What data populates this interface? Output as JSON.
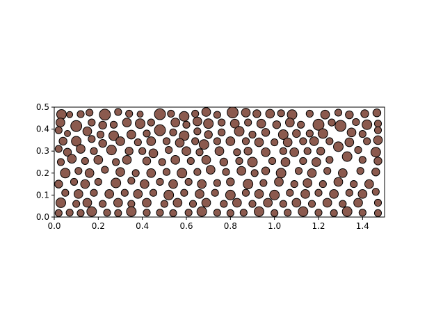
{
  "chart_data": {
    "type": "scatter",
    "title": "",
    "xlabel": "",
    "ylabel": "",
    "xlim": [
      0.0,
      1.5
    ],
    "ylim": [
      0.0,
      0.5
    ],
    "xticks": [
      "0.0",
      "0.2",
      "0.4",
      "0.6",
      "0.8",
      "1.0",
      "1.2",
      "1.4"
    ],
    "yticks": [
      "0.0",
      "0.1",
      "0.2",
      "0.3",
      "0.4",
      "0.5"
    ],
    "grid": false,
    "marker_fill": "#8b5a4e",
    "marker_edge": "#000000",
    "marker_shape": "circle",
    "aspect": "equal",
    "note_sizes": "marker radius r in data units",
    "points": [
      {
        "x": 0.033,
        "y": 0.467,
        "r": 0.022
      },
      {
        "x": 0.07,
        "y": 0.466,
        "r": 0.014
      },
      {
        "x": 0.12,
        "y": 0.468,
        "r": 0.016
      },
      {
        "x": 0.16,
        "y": 0.475,
        "r": 0.016
      },
      {
        "x": 0.23,
        "y": 0.466,
        "r": 0.025
      },
      {
        "x": 0.29,
        "y": 0.478,
        "r": 0.016
      },
      {
        "x": 0.34,
        "y": 0.47,
        "r": 0.016
      },
      {
        "x": 0.39,
        "y": 0.468,
        "r": 0.014
      },
      {
        "x": 0.48,
        "y": 0.468,
        "r": 0.025
      },
      {
        "x": 0.53,
        "y": 0.47,
        "r": 0.016
      },
      {
        "x": 0.59,
        "y": 0.458,
        "r": 0.022
      },
      {
        "x": 0.64,
        "y": 0.47,
        "r": 0.016
      },
      {
        "x": 0.69,
        "y": 0.478,
        "r": 0.02
      },
      {
        "x": 0.74,
        "y": 0.465,
        "r": 0.016
      },
      {
        "x": 0.81,
        "y": 0.476,
        "r": 0.025
      },
      {
        "x": 0.87,
        "y": 0.475,
        "r": 0.02
      },
      {
        "x": 0.92,
        "y": 0.47,
        "r": 0.018
      },
      {
        "x": 0.98,
        "y": 0.47,
        "r": 0.02
      },
      {
        "x": 1.03,
        "y": 0.472,
        "r": 0.016
      },
      {
        "x": 1.08,
        "y": 0.466,
        "r": 0.022
      },
      {
        "x": 1.16,
        "y": 0.47,
        "r": 0.016
      },
      {
        "x": 1.23,
        "y": 0.466,
        "r": 0.02
      },
      {
        "x": 1.29,
        "y": 0.475,
        "r": 0.016
      },
      {
        "x": 1.34,
        "y": 0.465,
        "r": 0.018
      },
      {
        "x": 1.41,
        "y": 0.47,
        "r": 0.018
      },
      {
        "x": 1.465,
        "y": 0.474,
        "r": 0.018
      },
      {
        "x": 0.028,
        "y": 0.43,
        "r": 0.02
      },
      {
        "x": 0.1,
        "y": 0.414,
        "r": 0.025
      },
      {
        "x": 0.17,
        "y": 0.43,
        "r": 0.016
      },
      {
        "x": 0.22,
        "y": 0.418,
        "r": 0.018
      },
      {
        "x": 0.27,
        "y": 0.42,
        "r": 0.016
      },
      {
        "x": 0.33,
        "y": 0.43,
        "r": 0.02
      },
      {
        "x": 0.39,
        "y": 0.425,
        "r": 0.022
      },
      {
        "x": 0.44,
        "y": 0.43,
        "r": 0.016
      },
      {
        "x": 0.48,
        "y": 0.395,
        "r": 0.025
      },
      {
        "x": 0.55,
        "y": 0.43,
        "r": 0.02
      },
      {
        "x": 0.6,
        "y": 0.42,
        "r": 0.016
      },
      {
        "x": 0.65,
        "y": 0.435,
        "r": 0.02
      },
      {
        "x": 0.7,
        "y": 0.425,
        "r": 0.022
      },
      {
        "x": 0.76,
        "y": 0.43,
        "r": 0.016
      },
      {
        "x": 0.82,
        "y": 0.425,
        "r": 0.02
      },
      {
        "x": 0.88,
        "y": 0.43,
        "r": 0.016
      },
      {
        "x": 0.94,
        "y": 0.425,
        "r": 0.02
      },
      {
        "x": 1.01,
        "y": 0.42,
        "r": 0.018
      },
      {
        "x": 1.07,
        "y": 0.43,
        "r": 0.02
      },
      {
        "x": 1.12,
        "y": 0.42,
        "r": 0.016
      },
      {
        "x": 1.2,
        "y": 0.42,
        "r": 0.025
      },
      {
        "x": 1.26,
        "y": 0.43,
        "r": 0.016
      },
      {
        "x": 1.3,
        "y": 0.415,
        "r": 0.025
      },
      {
        "x": 1.37,
        "y": 0.432,
        "r": 0.016
      },
      {
        "x": 1.42,
        "y": 0.42,
        "r": 0.022
      },
      {
        "x": 1.47,
        "y": 0.425,
        "r": 0.016
      },
      {
        "x": 0.02,
        "y": 0.395,
        "r": 0.016
      },
      {
        "x": 0.06,
        "y": 0.38,
        "r": 0.014
      },
      {
        "x": 0.15,
        "y": 0.39,
        "r": 0.02
      },
      {
        "x": 0.21,
        "y": 0.375,
        "r": 0.016
      },
      {
        "x": 0.27,
        "y": 0.37,
        "r": 0.022
      },
      {
        "x": 0.35,
        "y": 0.375,
        "r": 0.02
      },
      {
        "x": 0.42,
        "y": 0.38,
        "r": 0.016
      },
      {
        "x": 0.54,
        "y": 0.385,
        "r": 0.016
      },
      {
        "x": 0.59,
        "y": 0.37,
        "r": 0.022
      },
      {
        "x": 0.65,
        "y": 0.39,
        "r": 0.016
      },
      {
        "x": 0.7,
        "y": 0.375,
        "r": 0.018
      },
      {
        "x": 0.76,
        "y": 0.385,
        "r": 0.016
      },
      {
        "x": 0.84,
        "y": 0.39,
        "r": 0.022
      },
      {
        "x": 0.9,
        "y": 0.375,
        "r": 0.016
      },
      {
        "x": 0.96,
        "y": 0.385,
        "r": 0.018
      },
      {
        "x": 1.04,
        "y": 0.375,
        "r": 0.022
      },
      {
        "x": 1.1,
        "y": 0.38,
        "r": 0.018
      },
      {
        "x": 1.16,
        "y": 0.38,
        "r": 0.016
      },
      {
        "x": 1.22,
        "y": 0.38,
        "r": 0.022
      },
      {
        "x": 1.35,
        "y": 0.385,
        "r": 0.02
      },
      {
        "x": 1.4,
        "y": 0.378,
        "r": 0.016
      },
      {
        "x": 1.47,
        "y": 0.395,
        "r": 0.016
      },
      {
        "x": 0.04,
        "y": 0.345,
        "r": 0.018
      },
      {
        "x": 0.1,
        "y": 0.345,
        "r": 0.022
      },
      {
        "x": 0.17,
        "y": 0.355,
        "r": 0.016
      },
      {
        "x": 0.22,
        "y": 0.335,
        "r": 0.018
      },
      {
        "x": 0.3,
        "y": 0.345,
        "r": 0.02
      },
      {
        "x": 0.38,
        "y": 0.34,
        "r": 0.016
      },
      {
        "x": 0.44,
        "y": 0.345,
        "r": 0.02
      },
      {
        "x": 0.51,
        "y": 0.345,
        "r": 0.016
      },
      {
        "x": 0.57,
        "y": 0.338,
        "r": 0.02
      },
      {
        "x": 0.64,
        "y": 0.345,
        "r": 0.016
      },
      {
        "x": 0.68,
        "y": 0.33,
        "r": 0.022
      },
      {
        "x": 0.74,
        "y": 0.345,
        "r": 0.016
      },
      {
        "x": 0.8,
        "y": 0.345,
        "r": 0.02
      },
      {
        "x": 0.87,
        "y": 0.345,
        "r": 0.016
      },
      {
        "x": 0.93,
        "y": 0.34,
        "r": 0.02
      },
      {
        "x": 1.0,
        "y": 0.34,
        "r": 0.016
      },
      {
        "x": 1.06,
        "y": 0.34,
        "r": 0.02
      },
      {
        "x": 1.13,
        "y": 0.345,
        "r": 0.016
      },
      {
        "x": 1.18,
        "y": 0.345,
        "r": 0.02
      },
      {
        "x": 1.25,
        "y": 0.345,
        "r": 0.016
      },
      {
        "x": 1.34,
        "y": 0.34,
        "r": 0.02
      },
      {
        "x": 1.42,
        "y": 0.345,
        "r": 0.016
      },
      {
        "x": 1.47,
        "y": 0.35,
        "r": 0.02
      },
      {
        "x": 0.02,
        "y": 0.31,
        "r": 0.016
      },
      {
        "x": 0.06,
        "y": 0.295,
        "r": 0.018
      },
      {
        "x": 0.12,
        "y": 0.31,
        "r": 0.02
      },
      {
        "x": 0.18,
        "y": 0.3,
        "r": 0.016
      },
      {
        "x": 0.26,
        "y": 0.305,
        "r": 0.022
      },
      {
        "x": 0.34,
        "y": 0.3,
        "r": 0.018
      },
      {
        "x": 0.4,
        "y": 0.3,
        "r": 0.016
      },
      {
        "x": 0.45,
        "y": 0.29,
        "r": 0.02
      },
      {
        "x": 0.52,
        "y": 0.305,
        "r": 0.016
      },
      {
        "x": 0.6,
        "y": 0.3,
        "r": 0.02
      },
      {
        "x": 0.66,
        "y": 0.295,
        "r": 0.016
      },
      {
        "x": 0.75,
        "y": 0.3,
        "r": 0.02
      },
      {
        "x": 0.83,
        "y": 0.295,
        "r": 0.016
      },
      {
        "x": 0.88,
        "y": 0.3,
        "r": 0.018
      },
      {
        "x": 0.96,
        "y": 0.295,
        "r": 0.02
      },
      {
        "x": 1.04,
        "y": 0.3,
        "r": 0.016
      },
      {
        "x": 1.09,
        "y": 0.295,
        "r": 0.02
      },
      {
        "x": 1.15,
        "y": 0.3,
        "r": 0.016
      },
      {
        "x": 1.21,
        "y": 0.3,
        "r": 0.018
      },
      {
        "x": 1.29,
        "y": 0.32,
        "r": 0.022
      },
      {
        "x": 1.38,
        "y": 0.305,
        "r": 0.016
      },
      {
        "x": 1.46,
        "y": 0.295,
        "r": 0.022
      },
      {
        "x": 0.03,
        "y": 0.25,
        "r": 0.016
      },
      {
        "x": 0.08,
        "y": 0.265,
        "r": 0.02
      },
      {
        "x": 0.14,
        "y": 0.255,
        "r": 0.016
      },
      {
        "x": 0.2,
        "y": 0.26,
        "r": 0.02
      },
      {
        "x": 0.28,
        "y": 0.25,
        "r": 0.016
      },
      {
        "x": 0.33,
        "y": 0.26,
        "r": 0.02
      },
      {
        "x": 0.42,
        "y": 0.255,
        "r": 0.018
      },
      {
        "x": 0.49,
        "y": 0.25,
        "r": 0.016
      },
      {
        "x": 0.55,
        "y": 0.26,
        "r": 0.02
      },
      {
        "x": 0.62,
        "y": 0.255,
        "r": 0.016
      },
      {
        "x": 0.69,
        "y": 0.26,
        "r": 0.02
      },
      {
        "x": 0.77,
        "y": 0.25,
        "r": 0.018
      },
      {
        "x": 0.84,
        "y": 0.255,
        "r": 0.016
      },
      {
        "x": 0.9,
        "y": 0.25,
        "r": 0.022
      },
      {
        "x": 0.99,
        "y": 0.255,
        "r": 0.016
      },
      {
        "x": 1.05,
        "y": 0.25,
        "r": 0.02
      },
      {
        "x": 1.13,
        "y": 0.255,
        "r": 0.016
      },
      {
        "x": 1.19,
        "y": 0.25,
        "r": 0.02
      },
      {
        "x": 1.25,
        "y": 0.26,
        "r": 0.016
      },
      {
        "x": 1.33,
        "y": 0.275,
        "r": 0.022
      },
      {
        "x": 1.4,
        "y": 0.26,
        "r": 0.016
      },
      {
        "x": 1.47,
        "y": 0.255,
        "r": 0.018
      },
      {
        "x": 0.05,
        "y": 0.2,
        "r": 0.022
      },
      {
        "x": 0.11,
        "y": 0.21,
        "r": 0.016
      },
      {
        "x": 0.16,
        "y": 0.2,
        "r": 0.02
      },
      {
        "x": 0.23,
        "y": 0.215,
        "r": 0.016
      },
      {
        "x": 0.3,
        "y": 0.205,
        "r": 0.02
      },
      {
        "x": 0.37,
        "y": 0.2,
        "r": 0.016
      },
      {
        "x": 0.44,
        "y": 0.2,
        "r": 0.02
      },
      {
        "x": 0.51,
        "y": 0.205,
        "r": 0.016
      },
      {
        "x": 0.58,
        "y": 0.2,
        "r": 0.022
      },
      {
        "x": 0.65,
        "y": 0.205,
        "r": 0.016
      },
      {
        "x": 0.71,
        "y": 0.215,
        "r": 0.02
      },
      {
        "x": 0.78,
        "y": 0.205,
        "r": 0.016
      },
      {
        "x": 0.85,
        "y": 0.21,
        "r": 0.02
      },
      {
        "x": 0.91,
        "y": 0.2,
        "r": 0.016
      },
      {
        "x": 0.96,
        "y": 0.21,
        "r": 0.018
      },
      {
        "x": 1.03,
        "y": 0.2,
        "r": 0.022
      },
      {
        "x": 1.11,
        "y": 0.21,
        "r": 0.016
      },
      {
        "x": 1.17,
        "y": 0.2,
        "r": 0.02
      },
      {
        "x": 1.24,
        "y": 0.21,
        "r": 0.016
      },
      {
        "x": 1.31,
        "y": 0.2,
        "r": 0.02
      },
      {
        "x": 1.39,
        "y": 0.21,
        "r": 0.016
      },
      {
        "x": 1.46,
        "y": 0.205,
        "r": 0.018
      },
      {
        "x": 0.02,
        "y": 0.15,
        "r": 0.018
      },
      {
        "x": 0.09,
        "y": 0.16,
        "r": 0.016
      },
      {
        "x": 0.14,
        "y": 0.15,
        "r": 0.02
      },
      {
        "x": 0.2,
        "y": 0.16,
        "r": 0.016
      },
      {
        "x": 0.28,
        "y": 0.155,
        "r": 0.022
      },
      {
        "x": 0.35,
        "y": 0.165,
        "r": 0.016
      },
      {
        "x": 0.41,
        "y": 0.15,
        "r": 0.02
      },
      {
        "x": 0.48,
        "y": 0.16,
        "r": 0.016
      },
      {
        "x": 0.54,
        "y": 0.15,
        "r": 0.02
      },
      {
        "x": 0.61,
        "y": 0.16,
        "r": 0.016
      },
      {
        "x": 0.67,
        "y": 0.15,
        "r": 0.02
      },
      {
        "x": 0.74,
        "y": 0.155,
        "r": 0.016
      },
      {
        "x": 0.8,
        "y": 0.16,
        "r": 0.018
      },
      {
        "x": 0.88,
        "y": 0.15,
        "r": 0.022
      },
      {
        "x": 0.95,
        "y": 0.155,
        "r": 0.016
      },
      {
        "x": 1.02,
        "y": 0.16,
        "r": 0.02
      },
      {
        "x": 1.09,
        "y": 0.15,
        "r": 0.016
      },
      {
        "x": 1.15,
        "y": 0.155,
        "r": 0.02
      },
      {
        "x": 1.22,
        "y": 0.15,
        "r": 0.016
      },
      {
        "x": 1.29,
        "y": 0.16,
        "r": 0.02
      },
      {
        "x": 1.36,
        "y": 0.15,
        "r": 0.016
      },
      {
        "x": 1.43,
        "y": 0.15,
        "r": 0.02
      },
      {
        "x": 0.05,
        "y": 0.11,
        "r": 0.016
      },
      {
        "x": 0.11,
        "y": 0.105,
        "r": 0.02
      },
      {
        "x": 0.18,
        "y": 0.11,
        "r": 0.016
      },
      {
        "x": 0.25,
        "y": 0.105,
        "r": 0.02
      },
      {
        "x": 0.32,
        "y": 0.11,
        "r": 0.016
      },
      {
        "x": 0.38,
        "y": 0.105,
        "r": 0.02
      },
      {
        "x": 0.45,
        "y": 0.11,
        "r": 0.016
      },
      {
        "x": 0.52,
        "y": 0.1,
        "r": 0.022
      },
      {
        "x": 0.59,
        "y": 0.11,
        "r": 0.016
      },
      {
        "x": 0.66,
        "y": 0.105,
        "r": 0.02
      },
      {
        "x": 0.73,
        "y": 0.11,
        "r": 0.016
      },
      {
        "x": 0.8,
        "y": 0.1,
        "r": 0.022
      },
      {
        "x": 0.87,
        "y": 0.11,
        "r": 0.016
      },
      {
        "x": 0.93,
        "y": 0.105,
        "r": 0.02
      },
      {
        "x": 1.0,
        "y": 0.1,
        "r": 0.022
      },
      {
        "x": 1.07,
        "y": 0.11,
        "r": 0.016
      },
      {
        "x": 1.14,
        "y": 0.105,
        "r": 0.02
      },
      {
        "x": 1.2,
        "y": 0.11,
        "r": 0.016
      },
      {
        "x": 1.27,
        "y": 0.105,
        "r": 0.02
      },
      {
        "x": 1.34,
        "y": 0.11,
        "r": 0.016
      },
      {
        "x": 1.4,
        "y": 0.105,
        "r": 0.02
      },
      {
        "x": 1.46,
        "y": 0.115,
        "r": 0.016
      },
      {
        "x": 0.03,
        "y": 0.065,
        "r": 0.022
      },
      {
        "x": 0.1,
        "y": 0.06,
        "r": 0.016
      },
      {
        "x": 0.15,
        "y": 0.065,
        "r": 0.02
      },
      {
        "x": 0.22,
        "y": 0.06,
        "r": 0.016
      },
      {
        "x": 0.29,
        "y": 0.065,
        "r": 0.02
      },
      {
        "x": 0.35,
        "y": 0.06,
        "r": 0.016
      },
      {
        "x": 0.42,
        "y": 0.065,
        "r": 0.02
      },
      {
        "x": 0.5,
        "y": 0.06,
        "r": 0.016
      },
      {
        "x": 0.56,
        "y": 0.065,
        "r": 0.02
      },
      {
        "x": 0.63,
        "y": 0.06,
        "r": 0.016
      },
      {
        "x": 0.69,
        "y": 0.065,
        "r": 0.02
      },
      {
        "x": 0.77,
        "y": 0.06,
        "r": 0.016
      },
      {
        "x": 0.83,
        "y": 0.065,
        "r": 0.02
      },
      {
        "x": 0.9,
        "y": 0.06,
        "r": 0.016
      },
      {
        "x": 0.97,
        "y": 0.065,
        "r": 0.02
      },
      {
        "x": 1.04,
        "y": 0.06,
        "r": 0.016
      },
      {
        "x": 1.1,
        "y": 0.065,
        "r": 0.02
      },
      {
        "x": 1.17,
        "y": 0.06,
        "r": 0.016
      },
      {
        "x": 1.24,
        "y": 0.065,
        "r": 0.02
      },
      {
        "x": 1.31,
        "y": 0.06,
        "r": 0.016
      },
      {
        "x": 1.38,
        "y": 0.065,
        "r": 0.02
      },
      {
        "x": 1.47,
        "y": 0.065,
        "r": 0.016
      },
      {
        "x": 0.02,
        "y": 0.018,
        "r": 0.016
      },
      {
        "x": 0.07,
        "y": 0.02,
        "r": 0.016
      },
      {
        "x": 0.12,
        "y": 0.018,
        "r": 0.016
      },
      {
        "x": 0.17,
        "y": 0.025,
        "r": 0.022
      },
      {
        "x": 0.24,
        "y": 0.02,
        "r": 0.016
      },
      {
        "x": 0.29,
        "y": 0.018,
        "r": 0.016
      },
      {
        "x": 0.35,
        "y": 0.025,
        "r": 0.022
      },
      {
        "x": 0.42,
        "y": 0.02,
        "r": 0.016
      },
      {
        "x": 0.48,
        "y": 0.02,
        "r": 0.016
      },
      {
        "x": 0.54,
        "y": 0.018,
        "r": 0.016
      },
      {
        "x": 0.61,
        "y": 0.02,
        "r": 0.016
      },
      {
        "x": 0.67,
        "y": 0.025,
        "r": 0.022
      },
      {
        "x": 0.74,
        "y": 0.02,
        "r": 0.016
      },
      {
        "x": 0.8,
        "y": 0.018,
        "r": 0.016
      },
      {
        "x": 0.86,
        "y": 0.02,
        "r": 0.016
      },
      {
        "x": 0.93,
        "y": 0.025,
        "r": 0.022
      },
      {
        "x": 1.0,
        "y": 0.018,
        "r": 0.016
      },
      {
        "x": 1.06,
        "y": 0.02,
        "r": 0.016
      },
      {
        "x": 1.13,
        "y": 0.025,
        "r": 0.022
      },
      {
        "x": 1.2,
        "y": 0.02,
        "r": 0.016
      },
      {
        "x": 1.27,
        "y": 0.018,
        "r": 0.016
      },
      {
        "x": 1.33,
        "y": 0.025,
        "r": 0.022
      },
      {
        "x": 1.4,
        "y": 0.02,
        "r": 0.016
      },
      {
        "x": 1.47,
        "y": 0.018,
        "r": 0.016
      }
    ]
  }
}
